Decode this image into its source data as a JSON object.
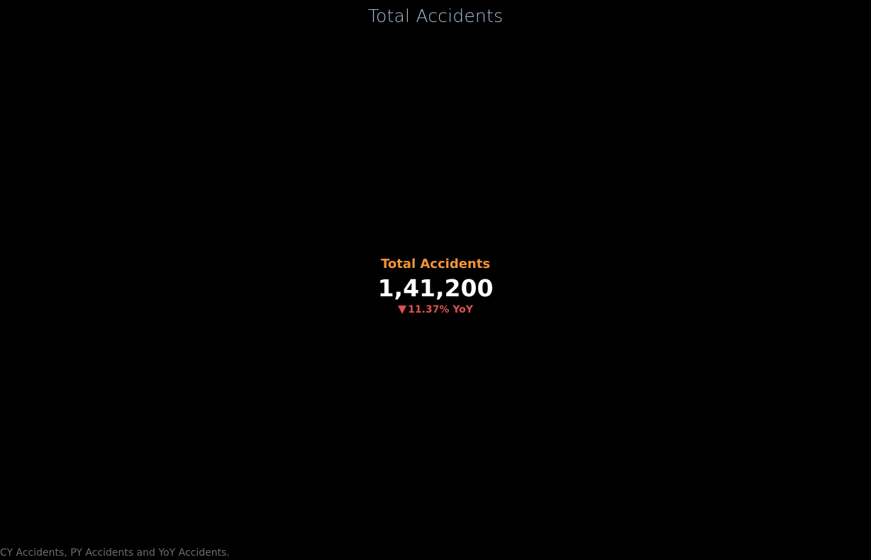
{
  "sheet": {
    "title": "Total Accidents",
    "caption": "CY Accidents, PY Accidents and YoY Accidents."
  },
  "colors": {
    "background": "#000000",
    "title": "#a9bed6",
    "kpi_label": "#f0953a",
    "kpi_value": "#ffffff",
    "kpi_change": "#d9534f",
    "caption": "#6e6e6e"
  },
  "chart_data": {
    "type": "table",
    "title": "Total Accidents",
    "kpi": {
      "label": "Total Accidents",
      "value": 141200,
      "value_text": "1,41,200",
      "yoy_change_percent": -11.37,
      "yoy_text": "11.37% YoY",
      "direction_icon": "triangle-down-icon"
    }
  }
}
